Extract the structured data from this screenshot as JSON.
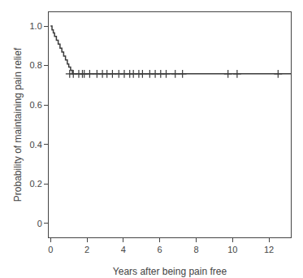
{
  "chart_data": {
    "type": "line",
    "xlabel": "Years after being pain free",
    "ylabel": "Probability of maintaining pain relief",
    "xlim": [
      -0.1,
      13.2
    ],
    "ylim": [
      -0.07,
      1.07
    ],
    "xticks": [
      0,
      2,
      4,
      6,
      8,
      10,
      12
    ],
    "yticks": [
      0,
      0.2,
      0.4,
      0.6,
      0.8,
      {
        "value": 1.0,
        "label": "1.0"
      }
    ],
    "grid": false,
    "series": [
      {
        "type": "step",
        "color": "#3a3a3a",
        "x": [
          0.0,
          0.08,
          0.15,
          0.22,
          0.32,
          0.42,
          0.52,
          0.62,
          0.72,
          0.82,
          0.92,
          1.0,
          1.1,
          1.2,
          13.2
        ],
        "values": [
          1.0,
          0.98,
          0.965,
          0.948,
          0.928,
          0.908,
          0.888,
          0.868,
          0.848,
          0.828,
          0.808,
          0.792,
          0.776,
          0.758,
          0.758
        ]
      },
      {
        "type": "scatter",
        "color": "#3a3a3a",
        "marker": "+",
        "x": [
          1.05,
          1.25,
          1.55,
          1.75,
          1.85,
          2.15,
          2.55,
          2.85,
          3.1,
          3.4,
          3.75,
          4.05,
          4.35,
          4.55,
          4.85,
          5.05,
          5.45,
          5.75,
          6.05,
          6.35,
          6.85,
          7.25,
          9.75,
          10.25,
          12.5
        ],
        "values": [
          0.758,
          0.758,
          0.758,
          0.758,
          0.758,
          0.758,
          0.758,
          0.758,
          0.758,
          0.758,
          0.758,
          0.758,
          0.758,
          0.758,
          0.758,
          0.758,
          0.758,
          0.758,
          0.758,
          0.758,
          0.758,
          0.758,
          0.758,
          0.758,
          0.758
        ]
      }
    ]
  }
}
